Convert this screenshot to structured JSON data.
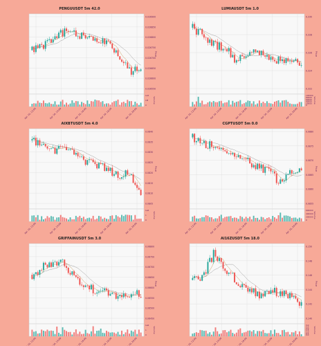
{
  "colors": {
    "background": "#f7a998",
    "panel": "#ffffff",
    "panel_fill": "#f8f8f8",
    "grid": "#dddddd",
    "up": "#26a69a",
    "down": "#ef5350",
    "ma1": "#c8a060",
    "ma2": "#a0a0a0",
    "label": "#6a1f5f"
  },
  "chart_data": [
    {
      "type": "candlestick",
      "title": "PENGUUSDT 5m 42.0",
      "ylabel": "Price",
      "volume_label": "Volume",
      "yticks": [
        "0.026900",
        "0.026850",
        "0.026800",
        "0.026750",
        "0.026700",
        "0.026650",
        "0.026600",
        "0.026550"
      ],
      "xticks": [
        "Apr 10, 12:00",
        "Apr 10, 14:00",
        "Apr 10, 16:00",
        "Apr 10, 18:00",
        "Apr 10, 20:00"
      ],
      "vticks": [
        "1e5",
        "1M",
        "0"
      ],
      "trend": [
        0.55,
        0.62,
        0.7,
        0.8,
        0.76,
        0.72,
        0.7,
        0.62,
        0.45,
        0.25,
        0.35
      ],
      "seed": 11
    },
    {
      "type": "candlestick",
      "title": "LUMIAUSDT 5m 1.0",
      "ylabel": "Price",
      "volume_label": "Volume",
      "yticks": [
        "0.330",
        "0.328",
        "0.326",
        "0.324",
        "0.322"
      ],
      "xticks": [
        "Apr 10, 12:00",
        "Apr 10, 14:00",
        "Apr 10, 16:00",
        "Apr 10, 18:00",
        "Apr 10, 20:00"
      ],
      "vticks": [
        "100000",
        "80000",
        "60000",
        "40000",
        "20000",
        "0"
      ],
      "trend": [
        0.85,
        0.75,
        0.62,
        0.58,
        0.4,
        0.5,
        0.55,
        0.45,
        0.42,
        0.4,
        0.35
      ],
      "seed": 23
    },
    {
      "type": "candlestick",
      "title": "AIXBTUSDT 5m 4.0",
      "ylabel": "Price",
      "volume_label": "Volume",
      "yticks": [
        "0.0840",
        "0.0835",
        "0.0830",
        "0.0825",
        "0.0820",
        "0.0815",
        "0.0810",
        "0.0805"
      ],
      "xticks": [
        "Apr 10, 12:00",
        "Apr 10, 14:00",
        "Apr 10, 16:00",
        "Apr 10, 18:00",
        "Apr 10, 20:00"
      ],
      "vticks": [
        "1e6",
        "1",
        "0"
      ],
      "trend": [
        0.88,
        0.78,
        0.72,
        0.8,
        0.68,
        0.6,
        0.55,
        0.5,
        0.4,
        0.45,
        0.18
      ],
      "seed": 37
    },
    {
      "type": "candlestick",
      "title": "CGPTUSDT 5m 0.0",
      "ylabel": "Price",
      "volume_label": "Volume",
      "yticks": [
        "0.0880",
        "0.0875",
        "0.0870",
        "0.0865",
        "0.0860",
        "0.0855"
      ],
      "xticks": [
        "Apr 10, 12:00",
        "Apr 10, 14:00",
        "Apr 10, 16:00",
        "Apr 10, 18:00",
        "Apr 10, 20:00"
      ],
      "vticks": [
        "600000",
        "400000",
        "200000",
        "0"
      ],
      "trend": [
        0.92,
        0.85,
        0.78,
        0.72,
        0.65,
        0.6,
        0.52,
        0.48,
        0.3,
        0.5,
        0.45
      ],
      "seed": 41
    },
    {
      "type": "candlestick",
      "title": "GRIFFAINUSDT 5m 3.0",
      "ylabel": "Price",
      "volume_label": "Volume",
      "yticks": [
        "0.06800",
        "0.06750",
        "0.06700",
        "0.06650",
        "0.06600",
        "0.06550",
        "0.06500",
        "0.06450"
      ],
      "xticks": [
        "Apr 10, 12:00",
        "Apr 10, 14:00",
        "Apr 10, 16:00",
        "Apr 10, 18:00",
        "Apr 10, 20:00"
      ],
      "vticks": [
        "1e6",
        "1",
        "0"
      ],
      "trend": [
        0.62,
        0.72,
        0.75,
        0.78,
        0.55,
        0.45,
        0.42,
        0.4,
        0.3,
        0.38,
        0.35
      ],
      "seed": 53
    },
    {
      "type": "candlestick",
      "title": "AI16ZUSDT 5m 18.0",
      "ylabel": "Price",
      "volume_label": "Volume",
      "yticks": [
        "0.150",
        "0.148",
        "0.146",
        "0.144",
        "0.142",
        "0.140"
      ],
      "xticks": [
        "Apr 10, 12:00",
        "Apr 10, 14:00",
        "Apr 10, 16:00",
        "Apr 10, 18:00",
        "Apr 10, 20:00"
      ],
      "vticks": [
        "3.0",
        "2.5",
        "2.0",
        "1.5",
        "1.0",
        "0.5",
        "0.0"
      ],
      "trend": [
        0.55,
        0.62,
        0.92,
        0.7,
        0.55,
        0.45,
        0.35,
        0.42,
        0.38,
        0.35,
        0.2
      ],
      "seed": 67
    }
  ]
}
